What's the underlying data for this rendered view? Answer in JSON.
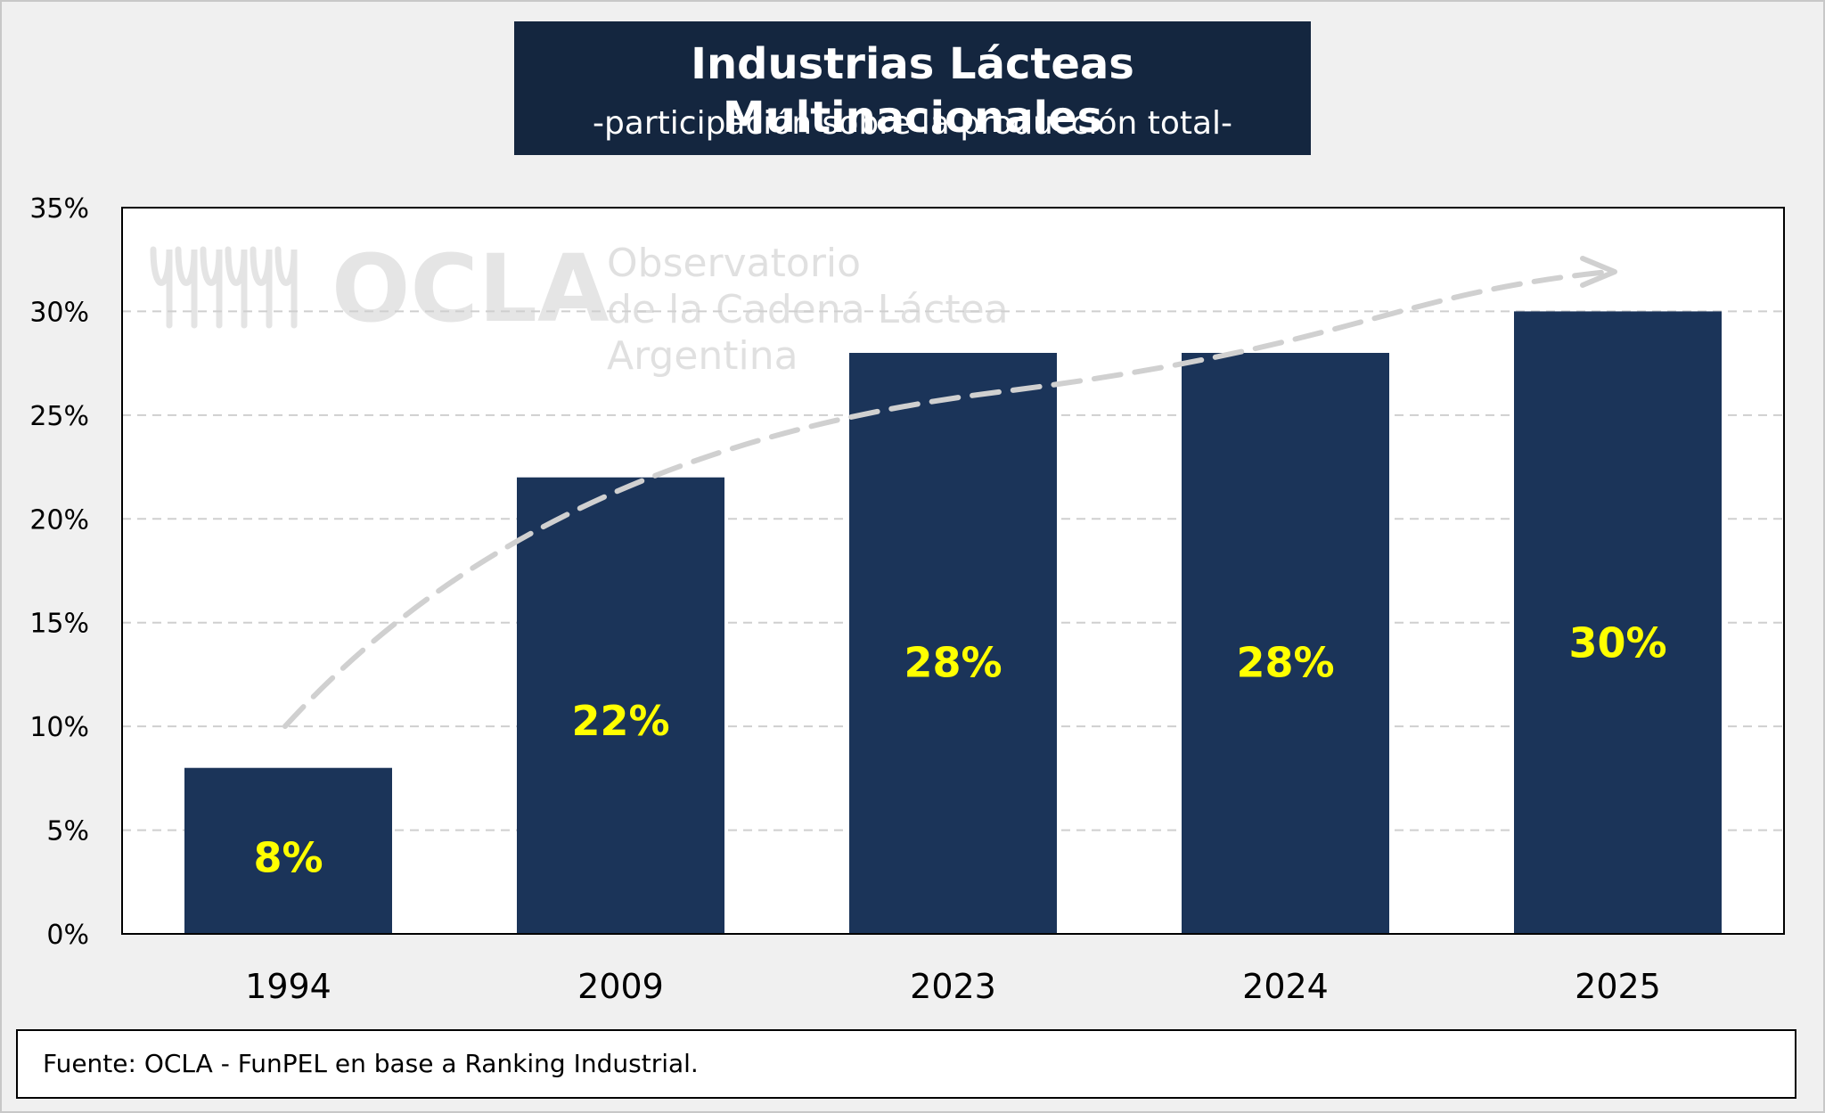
{
  "header": {
    "title": "Industrias Lácteas Multinacionales",
    "subtitle": "-participación sobre la producción total-"
  },
  "watermark": {
    "brand": "OCLA",
    "line1": "Observatorio",
    "line2": "de la Cadena Láctea",
    "line3": "Argentina"
  },
  "footer": {
    "source": "Fuente: OCLA - FunPEL en base a Ranking Industrial."
  },
  "colors": {
    "bar": "#1b3459",
    "label": "#ffff00",
    "title_bg": "#14263f",
    "trend": "#d0d0d0"
  },
  "chart_data": {
    "type": "bar",
    "title": "Industrias Lácteas Multinacionales",
    "subtitle": "-participación sobre la producción total-",
    "categories": [
      "1994",
      "2009",
      "2023",
      "2024",
      "2025"
    ],
    "values": [
      8,
      22,
      28,
      28,
      30
    ],
    "data_labels": [
      "8%",
      "22%",
      "28%",
      "28%",
      "30%"
    ],
    "ylim": [
      0,
      35
    ],
    "yticks": [
      0,
      5,
      10,
      15,
      20,
      25,
      30,
      35
    ],
    "ytick_labels": [
      "0%",
      "5%",
      "10%",
      "15%",
      "20%",
      "25%",
      "30%",
      "35%"
    ],
    "xlabel": "",
    "ylabel": "",
    "grid": true,
    "trend_arrow": true
  }
}
